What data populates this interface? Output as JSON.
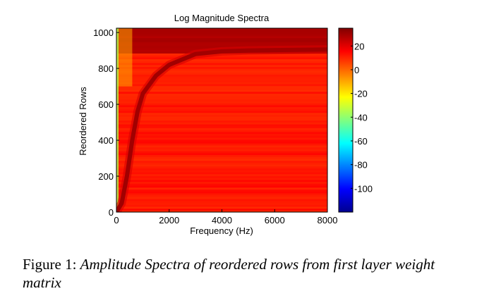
{
  "chart_data": {
    "type": "heatmap",
    "title": "Log Magnitude Spectra",
    "xlabel": "Frequency (Hz)",
    "ylabel": "Reordered Rows",
    "xlim": [
      0,
      8000
    ],
    "ylim": [
      0,
      1024
    ],
    "x_ticks": [
      "0",
      "2000",
      "4000",
      "6000",
      "8000"
    ],
    "x_tick_values": [
      0,
      2000,
      4000,
      6000,
      8000
    ],
    "y_ticks": [
      "0",
      "200",
      "400",
      "600",
      "800",
      "1000"
    ],
    "y_tick_values": [
      0,
      200,
      400,
      600,
      800,
      1000
    ],
    "colorbar": {
      "range": [
        -120,
        35
      ],
      "ticks": [
        "20",
        "0",
        "-20",
        "-40",
        "-60",
        "-80",
        "-100"
      ],
      "tick_values": [
        20,
        0,
        -20,
        -40,
        -60,
        -80,
        -100
      ],
      "colormap": "jet"
    },
    "ridge": {
      "description_points_hz_row": [
        [
          0,
          0
        ],
        [
          200,
          50
        ],
        [
          400,
          200
        ],
        [
          600,
          400
        ],
        [
          800,
          560
        ],
        [
          1000,
          660
        ],
        [
          1500,
          760
        ],
        [
          2000,
          820
        ],
        [
          3000,
          880
        ],
        [
          4000,
          895
        ],
        [
          5000,
          900
        ],
        [
          6000,
          902
        ],
        [
          8000,
          905
        ]
      ],
      "level_db": 30
    },
    "background_level_db": 12,
    "low_freq_band_level_db": -10,
    "top_rows_level_db": 28
  },
  "caption": {
    "label": "Figure 1:",
    "text": "Amplitude Spectra of reordered rows from first layer weight matrix"
  }
}
